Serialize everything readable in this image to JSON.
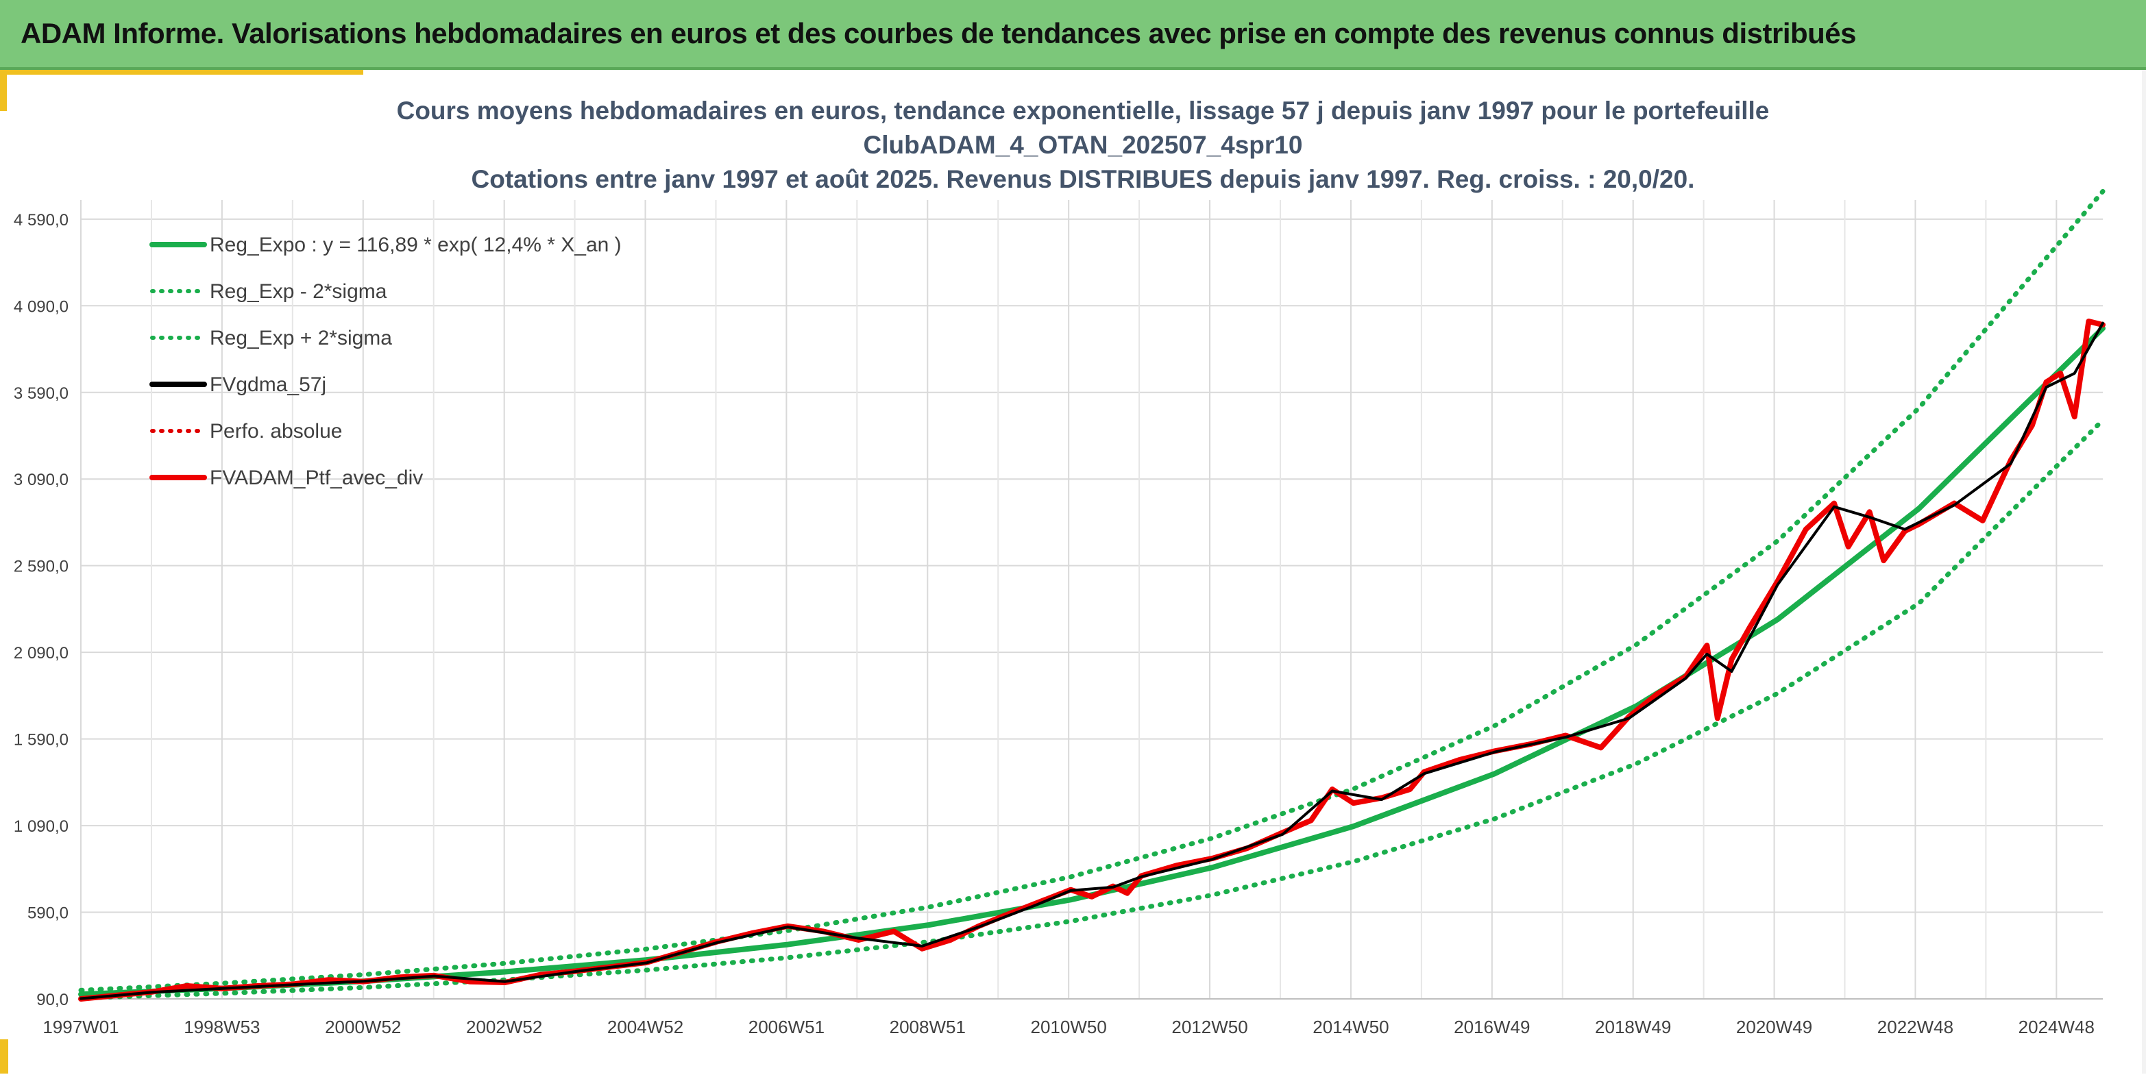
{
  "banner": {
    "title": "ADAM Informe. Valorisations hebdomadaires en euros et des courbes de tendances avec prise en compte des revenus connus distribués"
  },
  "colors": {
    "banner_bg": "#7cc77a",
    "accent": "#f0c020",
    "trend": "#1aae4c",
    "sigma": "#1aae4c",
    "gdma": "#000000",
    "perf": "#e00000",
    "portfolio": "#ee0000",
    "grid": "#d9d9d9",
    "title_text": "#44546a"
  },
  "chart_data": {
    "type": "line",
    "title_lines": [
      "Cours moyens hebdomadaires en euros, tendance exponentielle, lissage 57 j depuis janv 1997 pour le portefeuille",
      "ClubADAM_4_OTAN_202507_4spr10",
      "Cotations entre janv 1997 et août 2025. Revenus DISTRIBUES depuis janv 1997. Reg. croiss. : 20,0/20."
    ],
    "x_tick_labels": [
      "1997W01",
      "1998W53",
      "2000W52",
      "2002W52",
      "2004W52",
      "2006W51",
      "2008W51",
      "2010W50",
      "2012W50",
      "2014W50",
      "2016W49",
      "2018W49",
      "2020W49",
      "2022W48",
      "2024W48"
    ],
    "x_range": [
      1997.0,
      2025.6
    ],
    "y_tick_labels": [
      "90,0",
      "590,0",
      "1 090,0",
      "1 590,0",
      "2 090,0",
      "2 590,0",
      "3 090,0",
      "3 590,0",
      "4 090,0",
      "4 590,0"
    ],
    "y_ticks": [
      90,
      590,
      1090,
      1590,
      2090,
      2590,
      3090,
      3590,
      4090,
      4590
    ],
    "ylim": [
      90,
      4700
    ],
    "grid": true,
    "legend_position": "top-left",
    "legend": [
      {
        "key": "trend",
        "label": "Reg_Expo : y = 116,89 * exp( 12,4% *  X_an )",
        "style": "solid",
        "color": "#1aae4c"
      },
      {
        "key": "lower",
        "label": "Reg_Exp - 2*sigma",
        "style": "dotted",
        "color": "#1aae4c"
      },
      {
        "key": "upper",
        "label": "Reg_Exp + 2*sigma",
        "style": "dotted",
        "color": "#1aae4c"
      },
      {
        "key": "gdma",
        "label": "FVgdma_57j",
        "style": "solid",
        "color": "#000000"
      },
      {
        "key": "perf",
        "label": "Perfo. absolue",
        "style": "dotted",
        "color": "#e00000"
      },
      {
        "key": "portfolio",
        "label": "FVADAM_Ptf_avec_div",
        "style": "solid",
        "color": "#ee0000"
      }
    ],
    "series": [
      {
        "key": "trend",
        "name": "Reg_Expo : y = 116,89 * exp( 12,4% *  X_an )",
        "x": [
          1997.0,
          1999.0,
          2001.0,
          2003.0,
          2005.0,
          2007.0,
          2009.0,
          2011.0,
          2013.0,
          2015.0,
          2017.0,
          2019.0,
          2021.0,
          2023.0,
          2025.6
        ],
        "y": [
          117,
          150,
          192,
          246,
          315,
          404,
          517,
          662,
          848,
          1086,
          1390,
          1780,
          2280,
          2920,
          3960
        ]
      },
      {
        "key": "lower",
        "name": "Reg_Exp - 2*sigma",
        "x": [
          1997.0,
          1999.0,
          2001.0,
          2003.0,
          2005.0,
          2007.0,
          2009.0,
          2011.0,
          2013.0,
          2015.0,
          2017.0,
          2019.0,
          2021.0,
          2023.0,
          2025.6
        ],
        "y": [
          95,
          122,
          156,
          200,
          256,
          328,
          420,
          538,
          689,
          882,
          1130,
          1447,
          1853,
          2373,
          3430
        ]
      },
      {
        "key": "upper",
        "name": "Reg_Exp + 2*sigma",
        "x": [
          1997.0,
          1999.0,
          2001.0,
          2003.0,
          2005.0,
          2007.0,
          2009.0,
          2011.0,
          2013.0,
          2015.0,
          2017.0,
          2019.0,
          2021.0,
          2023.0,
          2025.6
        ],
        "y": [
          140,
          180,
          230,
          295,
          378,
          484,
          620,
          794,
          1017,
          1302,
          1667,
          2134,
          2733,
          3500,
          4750
        ]
      },
      {
        "key": "portfolio",
        "name": "FVADAM_Ptf_avec_div",
        "x": [
          1997.0,
          1997.5,
          1998.0,
          1998.5,
          1999.0,
          1999.5,
          2000.0,
          2000.5,
          2001.0,
          2001.5,
          2002.0,
          2002.5,
          2003.0,
          2003.5,
          2004.0,
          2004.5,
          2005.0,
          2005.5,
          2006.0,
          2006.5,
          2007.0,
          2007.5,
          2008.0,
          2008.5,
          2008.9,
          2009.3,
          2009.7,
          2010.0,
          2010.5,
          2011.0,
          2011.3,
          2011.6,
          2011.8,
          2012.0,
          2012.5,
          2013.0,
          2013.5,
          2014.0,
          2014.4,
          2014.7,
          2015.0,
          2015.4,
          2015.8,
          2016.0,
          2016.5,
          2017.0,
          2017.5,
          2018.0,
          2018.5,
          2018.9,
          2019.3,
          2019.7,
          2020.0,
          2020.15,
          2020.35,
          2020.6,
          2021.0,
          2021.4,
          2021.8,
          2022.0,
          2022.3,
          2022.5,
          2022.8,
          2023.0,
          2023.5,
          2023.9,
          2024.3,
          2024.6,
          2024.8,
          2025.0,
          2025.2,
          2025.4,
          2025.6
        ],
        "y": [
          90,
          110,
          130,
          165,
          150,
          165,
          175,
          200,
          190,
          215,
          225,
          190,
          185,
          230,
          250,
          275,
          300,
          360,
          420,
          470,
          510,
          480,
          430,
          480,
          380,
          430,
          510,
          560,
          640,
          720,
          680,
          740,
          700,
          800,
          860,
          900,
          960,
          1050,
          1120,
          1300,
          1220,
          1250,
          1300,
          1400,
          1470,
          1520,
          1560,
          1610,
          1540,
          1720,
          1850,
          1950,
          2130,
          1710,
          2050,
          2230,
          2500,
          2800,
          2950,
          2700,
          2900,
          2620,
          2790,
          2830,
          2950,
          2850,
          3200,
          3400,
          3650,
          3700,
          3450,
          4000,
          3980
        ]
      },
      {
        "key": "gdma",
        "name": "FVgdma_57j",
        "x": [
          1997.0,
          1998.0,
          1999.0,
          2000.0,
          2001.0,
          2002.0,
          2003.0,
          2004.0,
          2005.0,
          2006.0,
          2007.0,
          2008.0,
          2008.9,
          2009.7,
          2010.5,
          2011.0,
          2011.6,
          2012.0,
          2013.0,
          2014.0,
          2014.7,
          2015.4,
          2016.0,
          2017.0,
          2018.0,
          2018.9,
          2019.7,
          2020.0,
          2020.35,
          2021.0,
          2021.8,
          2022.3,
          2022.8,
          2023.5,
          2024.3,
          2024.8,
          2025.2,
          2025.6
        ],
        "y": [
          92,
          128,
          150,
          172,
          192,
          222,
          190,
          248,
          298,
          415,
          505,
          440,
          395,
          505,
          630,
          715,
          735,
          795,
          895,
          1040,
          1290,
          1240,
          1390,
          1515,
          1600,
          1710,
          1940,
          2080,
          1980,
          2480,
          2930,
          2870,
          2800,
          2940,
          3180,
          3620,
          3700,
          3990
        ]
      }
    ]
  }
}
